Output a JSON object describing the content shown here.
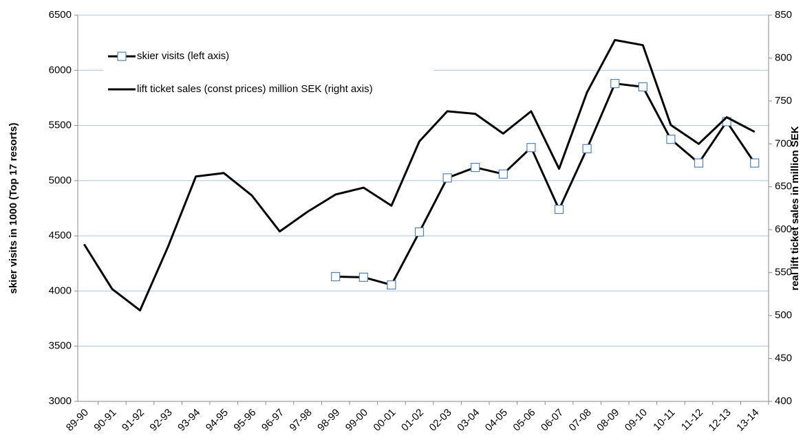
{
  "chart_data": {
    "type": "line",
    "categories": [
      "89-90",
      "90-91",
      "91-92",
      "92-93",
      "93-94",
      "94-95",
      "95-96",
      "96-97",
      "97-98",
      "98-99",
      "99-00",
      "00-01",
      "01-02",
      "02-03",
      "03-04",
      "04-05",
      "05-06",
      "06-07",
      "07-08",
      "08-09",
      "09-10",
      "10-11",
      "11-12",
      "12-13",
      "13-14"
    ],
    "series": [
      {
        "name": "skier visits (left axis)",
        "color": "#000000",
        "marker": "square",
        "marker_fill": "#ffffff",
        "marker_stroke": "#4f81bd",
        "values": [
          null,
          null,
          null,
          null,
          null,
          null,
          null,
          null,
          null,
          4130,
          4125,
          4055,
          4535,
          5025,
          5120,
          5060,
          5300,
          4740,
          5290,
          5880,
          5850,
          5375,
          5160,
          5535,
          5160
        ]
      },
      {
        "name": "lift ticket sales (const prices) million SEK (right axis)",
        "color": "#000000",
        "axis": "y2",
        "values": [
          583,
          531,
          506,
          580,
          662,
          666,
          640,
          598,
          621,
          641,
          649,
          628,
          703,
          738,
          735,
          712,
          738,
          671,
          760,
          821,
          815,
          722,
          700,
          731,
          714
        ]
      }
    ],
    "ylabel": "skier visits in 1000 (Top 17 resorts)",
    "y2label": "real lift ticket sales in million SEK",
    "ylim": [
      3000,
      6500
    ],
    "yticks": [
      3000,
      3500,
      4000,
      4500,
      5000,
      5500,
      6000,
      6500
    ],
    "y2lim": [
      400,
      850
    ],
    "y2ticks": [
      400,
      450,
      500,
      550,
      600,
      650,
      700,
      750,
      800,
      850
    ],
    "grid": true,
    "grid_color": "#a9c4df",
    "legend": "upper left"
  }
}
